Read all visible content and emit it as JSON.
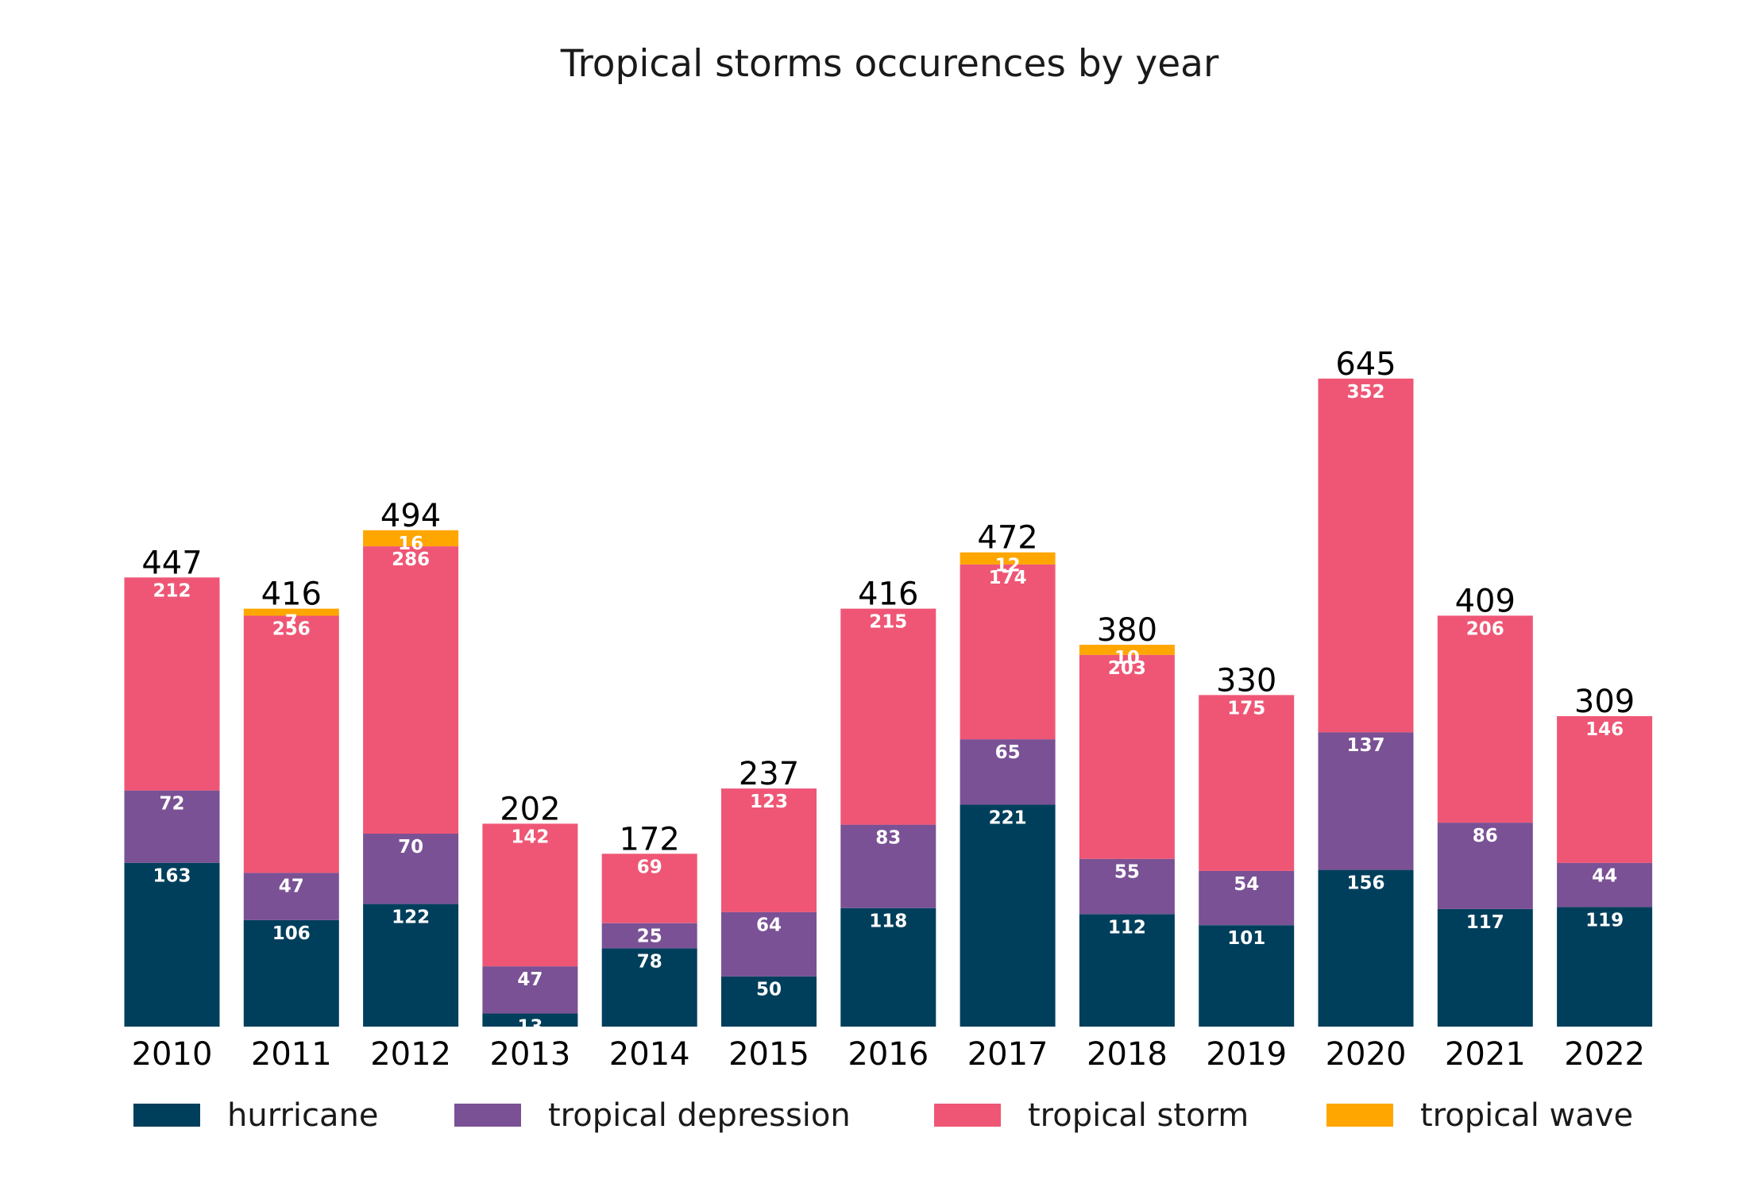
{
  "chart_data": {
    "type": "bar",
    "stacked": true,
    "title": "Tropical storms occurences by year",
    "xlabel": "",
    "ylabel": "",
    "ylim": [
      0,
      700
    ],
    "grid": false,
    "legend_position": "bottom",
    "categories": [
      "2010",
      "2011",
      "2012",
      "2013",
      "2014",
      "2015",
      "2016",
      "2017",
      "2018",
      "2019",
      "2020",
      "2021",
      "2022"
    ],
    "series": [
      {
        "name": "hurricane",
        "color": "#003f5c",
        "values": [
          163,
          106,
          122,
          13,
          78,
          50,
          118,
          221,
          112,
          101,
          156,
          117,
          119
        ]
      },
      {
        "name": "tropical depression",
        "color": "#7a5195",
        "values": [
          72,
          47,
          70,
          47,
          25,
          64,
          83,
          65,
          55,
          54,
          137,
          86,
          44
        ]
      },
      {
        "name": "tropical storm",
        "color": "#ef5675",
        "values": [
          212,
          256,
          286,
          142,
          69,
          123,
          215,
          174,
          203,
          175,
          352,
          206,
          146
        ]
      },
      {
        "name": "tropical wave",
        "color": "#ffa600",
        "values": [
          0,
          7,
          16,
          0,
          0,
          0,
          0,
          12,
          10,
          0,
          0,
          0,
          0
        ]
      }
    ],
    "totals": [
      447,
      416,
      494,
      202,
      172,
      237,
      416,
      472,
      380,
      330,
      645,
      409,
      309
    ]
  }
}
